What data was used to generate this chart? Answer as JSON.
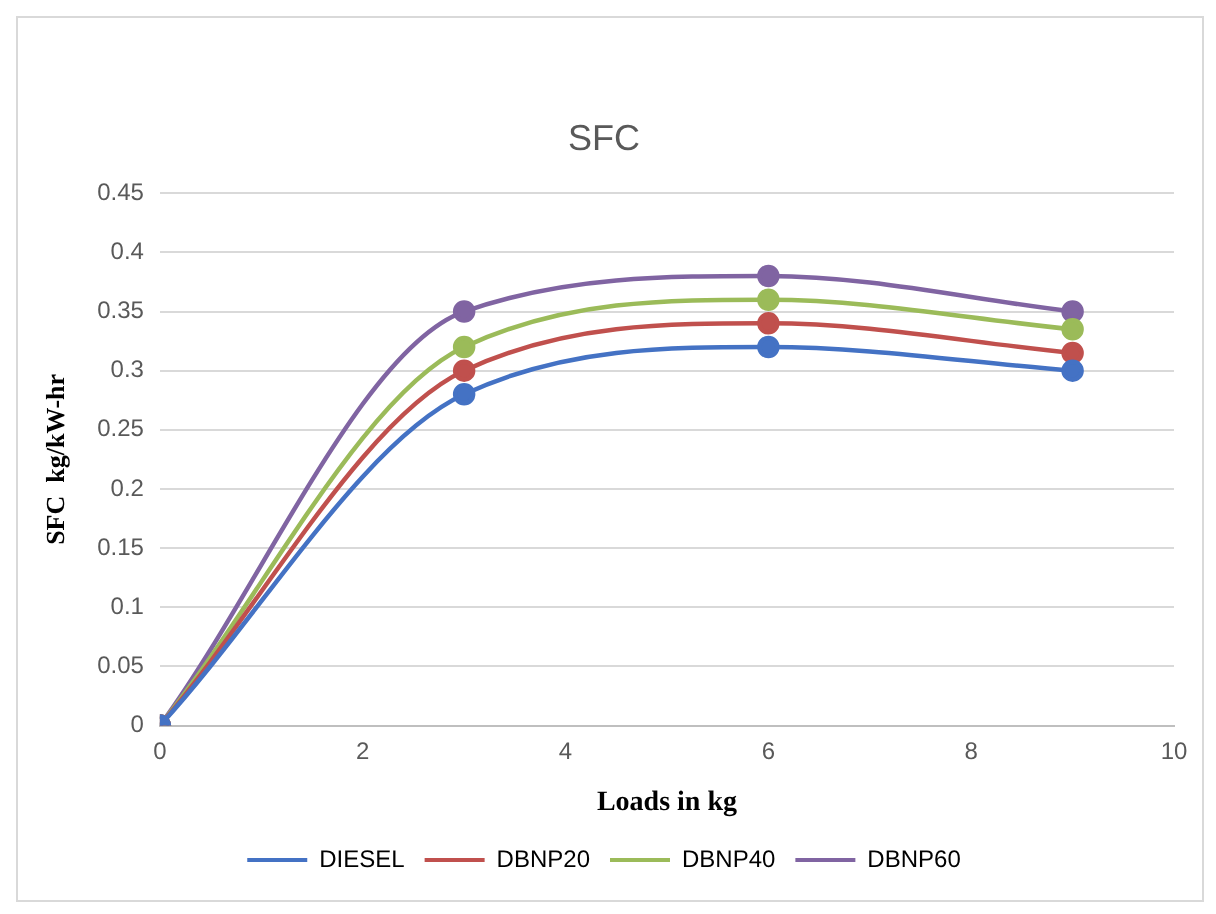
{
  "chart_data": {
    "type": "line",
    "title": "SFC",
    "xlabel": "Loads in kg",
    "ylabel": "SFC  kg/kW-hr",
    "x": [
      0,
      3,
      6,
      9
    ],
    "series": [
      {
        "name": "DIESEL",
        "color": "#4472c4",
        "values": [
          0,
          0.28,
          0.32,
          0.3
        ]
      },
      {
        "name": "DBNP20",
        "color": "#c0504d",
        "values": [
          0,
          0.3,
          0.34,
          0.315
        ]
      },
      {
        "name": "DBNP40",
        "color": "#9bbb59",
        "values": [
          0,
          0.32,
          0.36,
          0.335
        ]
      },
      {
        "name": "DBNP60",
        "color": "#8064a2",
        "values": [
          0,
          0.35,
          0.38,
          0.35
        ]
      }
    ],
    "xlim": [
      0,
      10
    ],
    "xticks": [
      0,
      2,
      4,
      6,
      8,
      10
    ],
    "ylim": [
      0,
      0.45
    ],
    "yticks": [
      0,
      0.05,
      0.1,
      0.15,
      0.2,
      0.25,
      0.3,
      0.35,
      0.4,
      0.45
    ],
    "grid": "y",
    "legend": "bottom",
    "marker": "circle",
    "line_style": "solid"
  }
}
